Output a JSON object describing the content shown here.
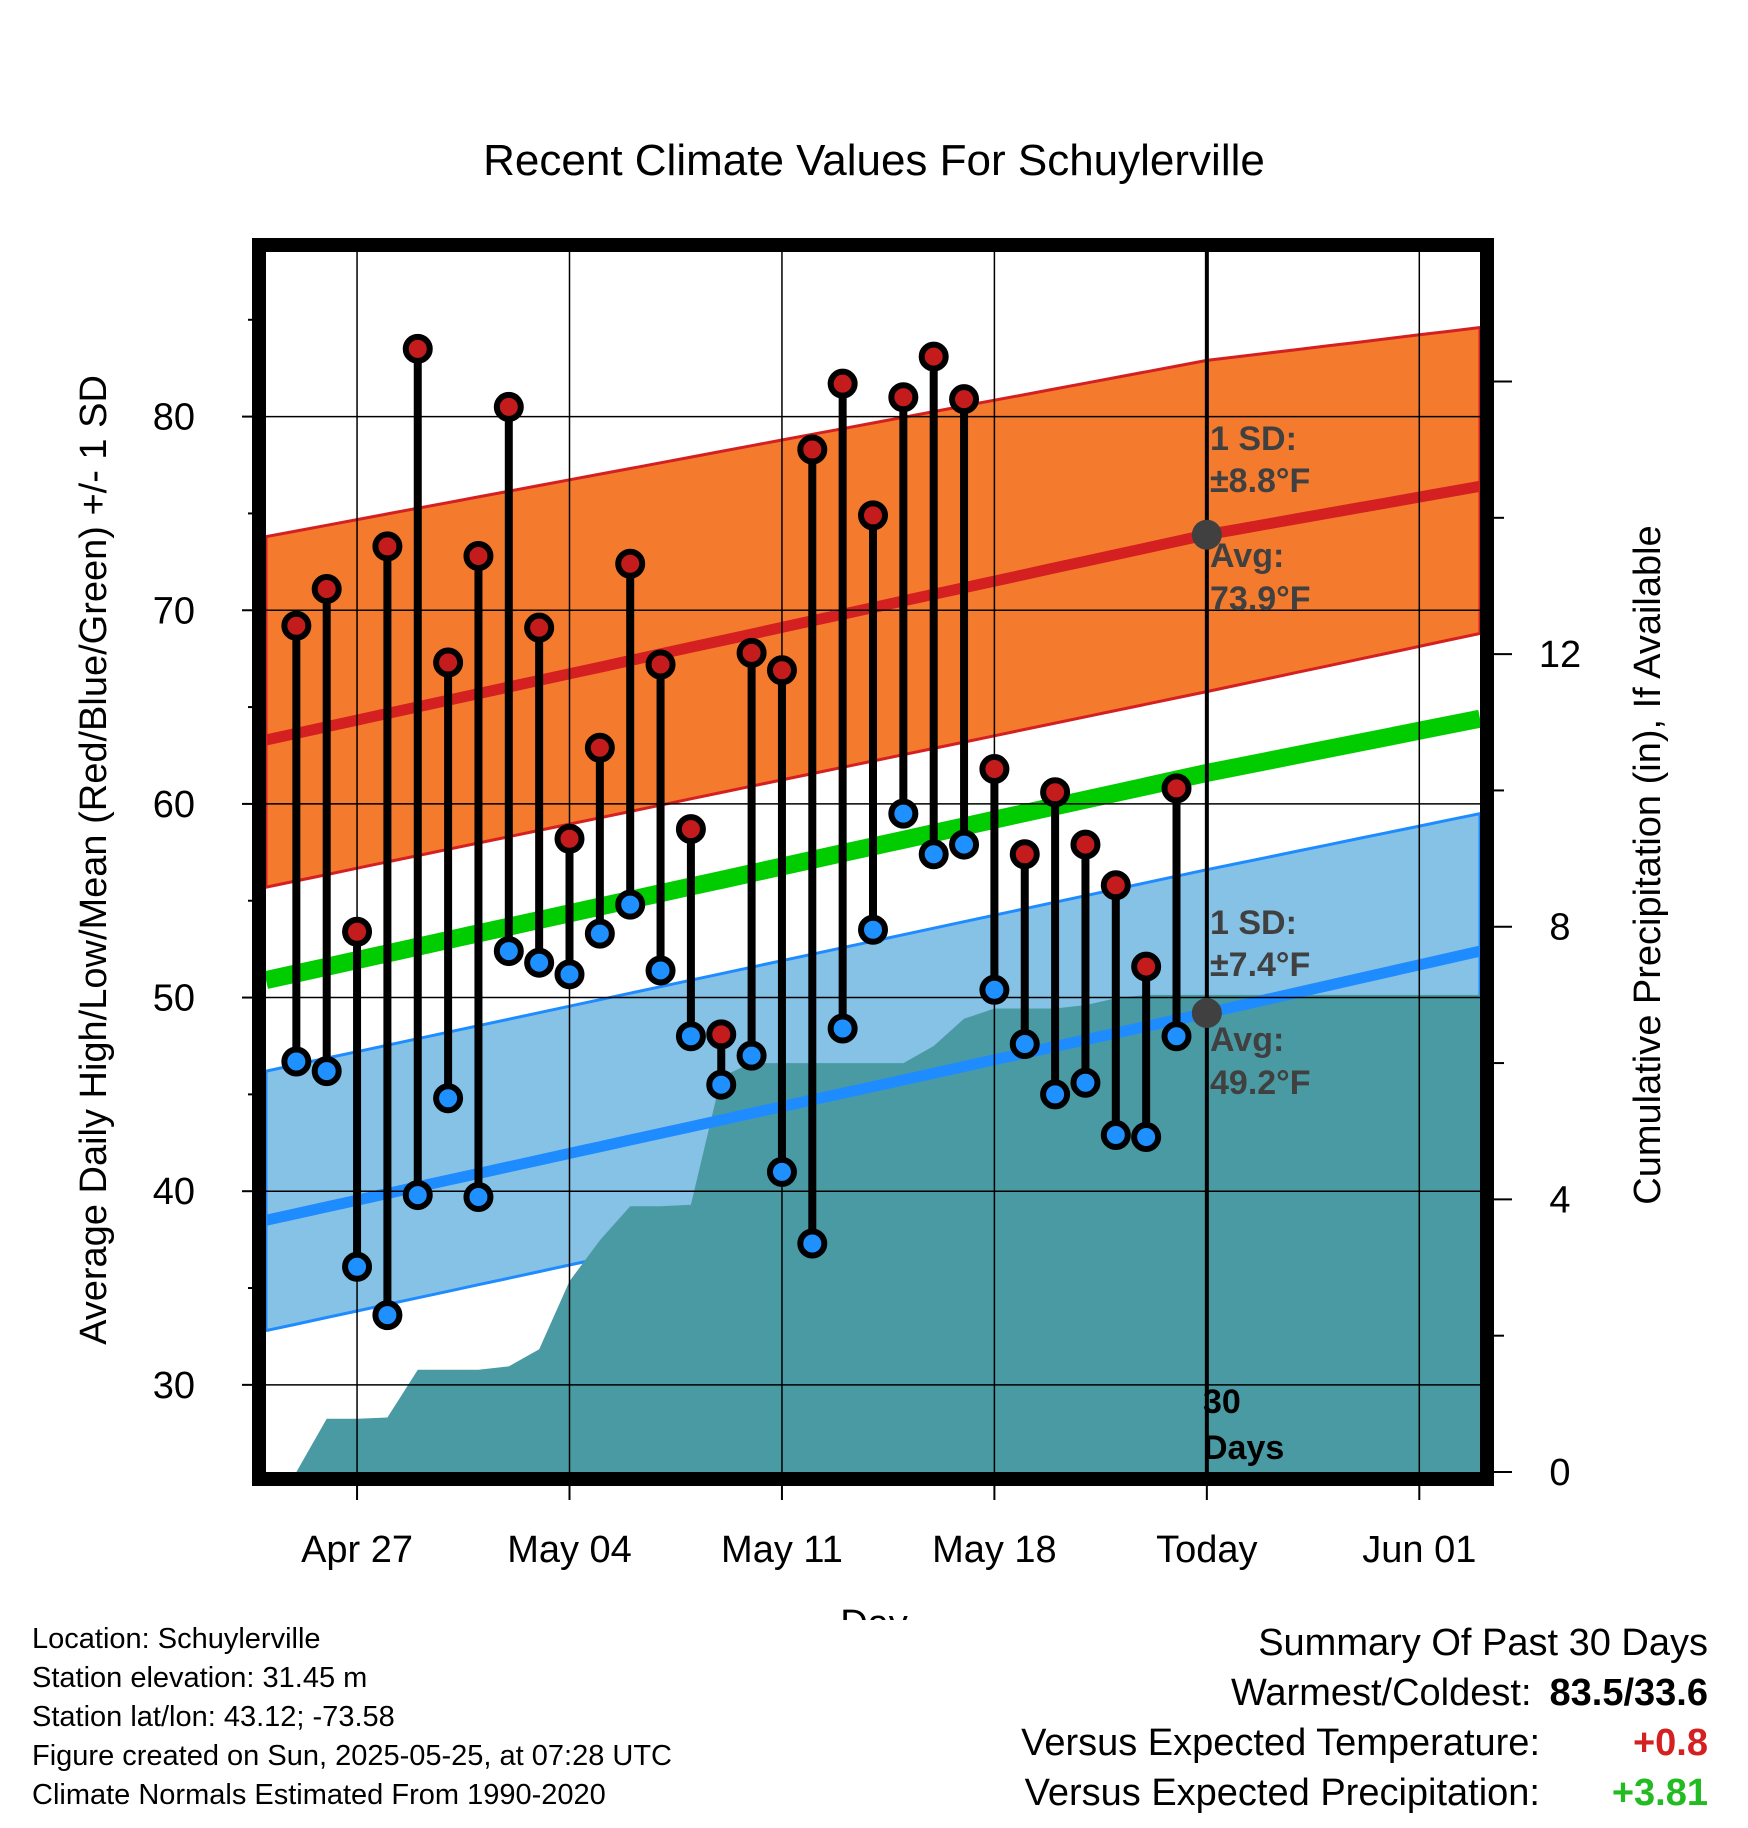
{
  "chart_data": {
    "type": "line",
    "title": "Recent Climate Values For Schuylerville",
    "xlabel": "Day",
    "ylabel": "Average Daily High/Low/Mean (Red/Blue/Green) +/- 1 SD",
    "ylabel_right": "Cumulative Precipitation (in), If Available",
    "x_tick_labels": [
      "Apr 27",
      "May 04",
      "May 11",
      "May 18",
      "Today",
      "Jun 01"
    ],
    "x_tick_dates": [
      "2025-04-27",
      "2025-05-04",
      "2025-05-11",
      "2025-05-18",
      "2025-05-25",
      "2025-06-01"
    ],
    "xlim": [
      "2025-04-24",
      "2025-06-03"
    ],
    "ylim": [
      25.5,
      88.5
    ],
    "y_ticks": [
      30,
      40,
      50,
      60,
      70,
      80
    ],
    "y2lim": [
      0,
      17.9
    ],
    "y2_ticks": [
      0,
      4,
      8,
      12
    ],
    "grid": true,
    "today_marker": {
      "date": "2025-05-25",
      "label_line1": "30",
      "label_line2": "Days"
    },
    "normals": {
      "dates": [
        "2025-04-24",
        "2025-05-25",
        "2025-06-03"
      ],
      "high_mean": [
        63.3,
        73.9,
        76.4
      ],
      "high_upper": [
        73.8,
        82.9,
        84.6
      ],
      "high_lower": [
        55.7,
        65.8,
        68.8
      ],
      "low_mean": [
        38.5,
        49.2,
        52.4
      ],
      "low_upper": [
        46.2,
        56.6,
        59.5
      ],
      "low_lower": [
        32.8,
        43.3,
        46.6
      ],
      "mean": [
        50.9,
        61.6,
        64.4
      ]
    },
    "normal_high_annotation": {
      "sd_label": "1 SD:",
      "sd_value": "±8.8°F",
      "avg_label": "Avg:",
      "avg_value": "73.9°F",
      "value": 73.9
    },
    "normal_low_annotation": {
      "sd_label": "1 SD:",
      "sd_value": "±7.4°F",
      "avg_label": "Avg:",
      "avg_value": "49.2°F",
      "value": 49.2
    },
    "observed": {
      "dates": [
        "2025-04-25",
        "2025-04-26",
        "2025-04-27",
        "2025-04-28",
        "2025-04-29",
        "2025-04-30",
        "2025-05-01",
        "2025-05-02",
        "2025-05-03",
        "2025-05-04",
        "2025-05-05",
        "2025-05-06",
        "2025-05-07",
        "2025-05-08",
        "2025-05-09",
        "2025-05-10",
        "2025-05-11",
        "2025-05-12",
        "2025-05-13",
        "2025-05-14",
        "2025-05-15",
        "2025-05-16",
        "2025-05-17",
        "2025-05-18",
        "2025-05-19",
        "2025-05-20",
        "2025-05-21",
        "2025-05-22",
        "2025-05-23",
        "2025-05-24"
      ],
      "high": [
        69.2,
        71.1,
        53.4,
        73.3,
        83.5,
        67.3,
        72.8,
        80.5,
        69.1,
        58.2,
        62.9,
        72.4,
        67.2,
        58.7,
        48.1,
        67.8,
        66.9,
        78.3,
        81.7,
        74.9,
        81.0,
        83.1,
        80.9,
        61.8,
        57.4,
        60.6,
        57.9,
        55.8,
        51.6,
        60.8
      ],
      "low": [
        46.7,
        46.2,
        36.1,
        33.6,
        39.8,
        44.8,
        39.7,
        52.4,
        51.8,
        51.2,
        53.3,
        54.8,
        51.4,
        48.0,
        45.5,
        47.0,
        41.0,
        37.3,
        48.4,
        53.5,
        59.5,
        57.4,
        57.9,
        50.4,
        47.6,
        45.0,
        45.6,
        42.9,
        42.8,
        48.0
      ]
    },
    "precip_cumulative": {
      "dates": [
        "2025-04-25",
        "2025-04-26",
        "2025-04-27",
        "2025-04-28",
        "2025-04-29",
        "2025-04-30",
        "2025-05-01",
        "2025-05-02",
        "2025-05-03",
        "2025-05-04",
        "2025-05-05",
        "2025-05-06",
        "2025-05-07",
        "2025-05-08",
        "2025-05-09",
        "2025-05-10",
        "2025-05-11",
        "2025-05-12",
        "2025-05-13",
        "2025-05-14",
        "2025-05-15",
        "2025-05-16",
        "2025-05-17",
        "2025-05-18",
        "2025-05-19",
        "2025-05-20",
        "2025-05-21",
        "2025-05-22",
        "2025-05-23",
        "2025-05-24",
        "2025-05-25",
        "2025-06-03"
      ],
      "values": [
        0.0,
        0.78,
        0.78,
        0.8,
        1.5,
        1.5,
        1.5,
        1.55,
        1.8,
        2.8,
        3.4,
        3.9,
        3.9,
        3.92,
        5.8,
        6.0,
        6.0,
        6.0,
        6.0,
        6.0,
        6.0,
        6.25,
        6.65,
        6.8,
        6.8,
        6.8,
        6.85,
        6.95,
        7.0,
        7.0,
        7.0,
        7.0
      ]
    },
    "colors": {
      "high_band": "#f47a2e",
      "high_line": "#d42020",
      "low_band": "#85c2e6",
      "low_line": "#1e8cff",
      "mean_line": "#00cc00",
      "precip": "#4a9aa4",
      "high_point": "#c41c1c",
      "low_point": "#1e90ff",
      "marker_today": "#404040"
    }
  },
  "footer": {
    "location": "Location: Schuylerville",
    "elevation": "Station elevation: 31.45 m",
    "latlon": "Station lat/lon: 43.12; -73.58",
    "created": "Figure created on Sun, 2025-05-25, at 07:28 UTC",
    "normals": "Climate Normals Estimated From 1990-2020"
  },
  "summary": {
    "heading": "Summary Of Past 30 Days",
    "warm_cold_label": "Warmest/Coldest:",
    "warm_cold_value": "83.5/33.6",
    "temp_label": "Versus Expected Temperature:",
    "temp_value": "+0.8",
    "temp_color": "#d42020",
    "precip_label": "Versus Expected Precipitation:",
    "precip_value": "+3.81",
    "precip_color": "#22bb22"
  }
}
